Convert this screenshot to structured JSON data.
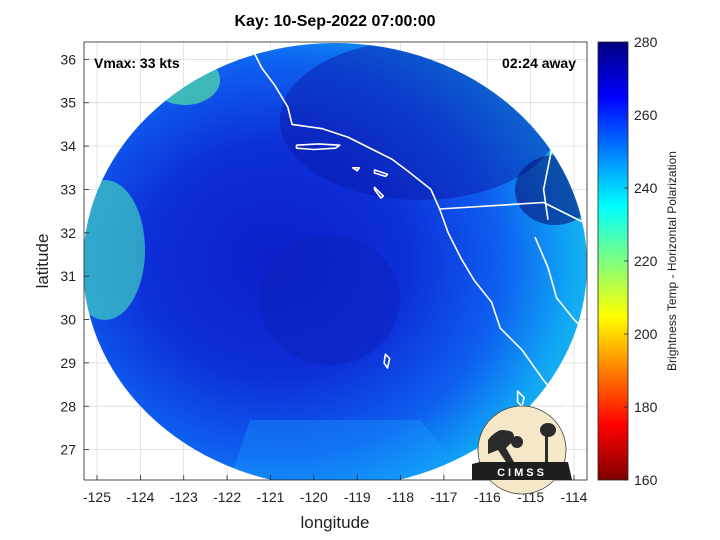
{
  "title": "Kay: 10-Sep-2022 07:00:00",
  "annotations": {
    "vmax": "Vmax: 33 kts",
    "away": "02:24 away"
  },
  "map": {
    "xlabel": "longitude",
    "ylabel": "latitude",
    "xlim": [
      -125.3,
      -113.7
    ],
    "ylim": [
      26.3,
      36.4
    ],
    "xticks": [
      -125,
      -124,
      -123,
      -122,
      -121,
      -120,
      -119,
      -118,
      -117,
      -116,
      -115,
      -114
    ],
    "yticks": [
      27,
      28,
      29,
      30,
      31,
      32,
      33,
      34,
      35,
      36
    ],
    "grid": true,
    "swath_center": [
      -119.3,
      31.4
    ],
    "storm_center": [
      -119.6,
      30.6
    ],
    "coastline": [
      [
        -121.5,
        36.4
      ],
      [
        -121.2,
        35.8
      ],
      [
        -120.9,
        35.4
      ],
      [
        -120.6,
        34.9
      ],
      [
        -120.5,
        34.5
      ],
      [
        -119.8,
        34.4
      ],
      [
        -119.2,
        34.2
      ],
      [
        -118.8,
        34.0
      ],
      [
        -118.4,
        33.8
      ],
      [
        -118.2,
        33.7
      ],
      [
        -117.8,
        33.4
      ],
      [
        -117.3,
        33.0
      ],
      [
        -117.1,
        32.55
      ],
      [
        -116.9,
        32.0
      ],
      [
        -116.6,
        31.4
      ],
      [
        -116.3,
        30.9
      ],
      [
        -115.9,
        30.4
      ],
      [
        -115.7,
        29.8
      ],
      [
        -115.2,
        29.3
      ],
      [
        -114.7,
        28.6
      ],
      [
        -114.2,
        28.0
      ],
      [
        -113.7,
        27.6
      ]
    ],
    "border_us_mexico": [
      [
        -117.1,
        32.55
      ],
      [
        -114.7,
        32.7
      ],
      [
        -113.7,
        32.2
      ]
    ],
    "gulf_coast": [
      [
        -114.9,
        31.9
      ],
      [
        -114.6,
        31.2
      ],
      [
        -114.4,
        30.5
      ],
      [
        -114.0,
        30.0
      ],
      [
        -113.7,
        29.7
      ]
    ],
    "colorado_line": [
      [
        -114.6,
        34.9
      ],
      [
        -114.5,
        34.0
      ],
      [
        -114.7,
        33.0
      ],
      [
        -114.6,
        32.3
      ]
    ],
    "islands": [
      {
        "name": "Channel Islands",
        "points": [
          [
            -120.4,
            34.02
          ],
          [
            -119.9,
            34.05
          ],
          [
            -119.4,
            34.02
          ],
          [
            -119.5,
            33.95
          ],
          [
            -120.0,
            33.92
          ],
          [
            -120.4,
            33.95
          ]
        ]
      },
      {
        "name": "Santa Barbara Is",
        "points": [
          [
            -119.1,
            33.5
          ],
          [
            -118.95,
            33.5
          ],
          [
            -119.0,
            33.43
          ]
        ]
      },
      {
        "name": "Santa Catalina",
        "points": [
          [
            -118.6,
            33.45
          ],
          [
            -118.3,
            33.35
          ],
          [
            -118.35,
            33.3
          ],
          [
            -118.6,
            33.38
          ]
        ]
      },
      {
        "name": "San Clemente",
        "points": [
          [
            -118.6,
            33.05
          ],
          [
            -118.4,
            32.85
          ],
          [
            -118.45,
            32.8
          ],
          [
            -118.6,
            33.0
          ]
        ]
      },
      {
        "name": "Guadalupe",
        "points": [
          [
            -118.35,
            29.2
          ],
          [
            -118.25,
            29.1
          ],
          [
            -118.3,
            28.88
          ],
          [
            -118.38,
            29.0
          ]
        ]
      },
      {
        "name": "Cedros",
        "points": [
          [
            -115.3,
            28.35
          ],
          [
            -115.15,
            28.2
          ],
          [
            -115.2,
            28.0
          ],
          [
            -115.3,
            28.1
          ]
        ]
      }
    ]
  },
  "colorbar": {
    "label": "Brightness Temp - Horizontal Polarization",
    "min": 160,
    "max": 280,
    "ticks": [
      160,
      180,
      200,
      220,
      240,
      260,
      280
    ],
    "colors": [
      "#7f0000",
      "#ff0000",
      "#ff7f00",
      "#ffff00",
      "#7fff7f",
      "#00ffff",
      "#007fff",
      "#0000ff",
      "#00007f"
    ]
  },
  "logo": {
    "text": "CIMSS",
    "icon": "cimss-logo-icon"
  }
}
